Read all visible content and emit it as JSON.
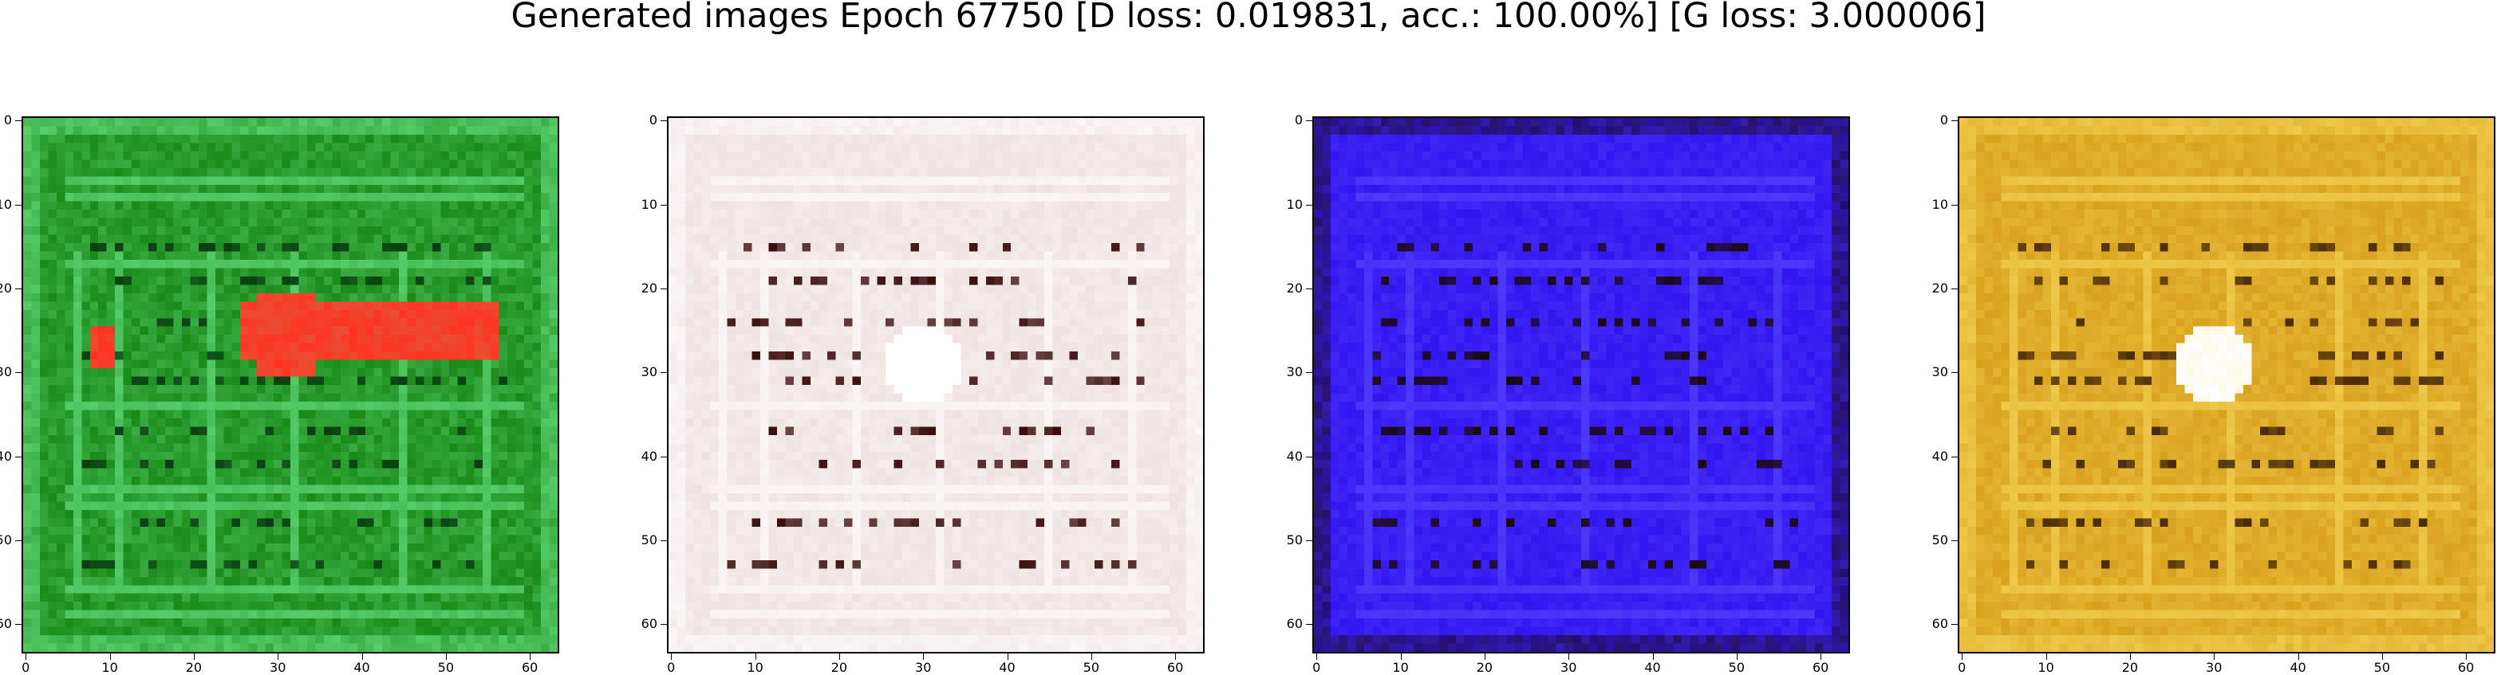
{
  "title": "Generated images Epoch 67750 [D loss: 0.019831, acc.: 100.00%] [G loss: 3.000006]",
  "x_tick_labels": [
    "0",
    "10",
    "20",
    "30",
    "40",
    "50",
    "60"
  ],
  "y_tick_labels": [
    "0",
    "10",
    "20",
    "30",
    "40",
    "50",
    "60"
  ],
  "panels": [
    {
      "id": "green",
      "dominant_color": "#1a8a1a",
      "highlight_color": "#6fe88a",
      "dark_color": "#0a3d12",
      "blob_color": "#ff3322",
      "blob_label_hidden": true
    },
    {
      "id": "white",
      "dominant_color": "#efe2e2",
      "highlight_color": "#ffffff",
      "dark_color": "#3a0c0c",
      "blob_color": "#ffffff"
    },
    {
      "id": "blue",
      "dominant_color": "#3315f0",
      "highlight_color": "#5a48ff",
      "dark_color": "#1a0a12",
      "blob_color": "#2a1a80"
    },
    {
      "id": "gold",
      "dominant_color": "#d9a21e",
      "highlight_color": "#f7d85c",
      "dark_color": "#4a2a08",
      "blob_color": "#ffffff"
    }
  ]
}
